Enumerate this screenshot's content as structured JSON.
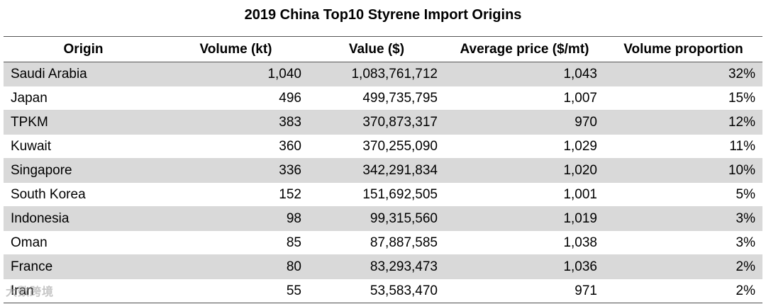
{
  "chart_data": {
    "type": "table",
    "title": "2019 China Top10 Styrene Import Origins",
    "columns": [
      "Origin",
      "Volume (kt)",
      "Value ($)",
      "Average price ($/mt)",
      "Volume proportion"
    ],
    "rows": [
      [
        "Saudi Arabia",
        "1,040",
        "1,083,761,712",
        "1,043",
        "32%"
      ],
      [
        "Japan",
        "496",
        "499,735,795",
        "1,007",
        "15%"
      ],
      [
        "TPKM",
        "383",
        "370,873,317",
        "970",
        "12%"
      ],
      [
        "Kuwait",
        "360",
        "370,255,090",
        "1,029",
        "11%"
      ],
      [
        "Singapore",
        "336",
        "342,291,834",
        "1,020",
        "10%"
      ],
      [
        "South Korea",
        "152",
        "151,692,505",
        "1,001",
        "5%"
      ],
      [
        "Indonesia",
        "98",
        "99,315,560",
        "1,019",
        "3%"
      ],
      [
        "Oman",
        "85",
        "87,887,585",
        "1,038",
        "3%"
      ],
      [
        "France",
        "80",
        "83,293,473",
        "1,036",
        "2%"
      ],
      [
        "Iran",
        "55",
        "53,583,470",
        "971",
        "2%"
      ]
    ],
    "shade_color": "#d9d9d9"
  },
  "watermark": "大数跨境"
}
